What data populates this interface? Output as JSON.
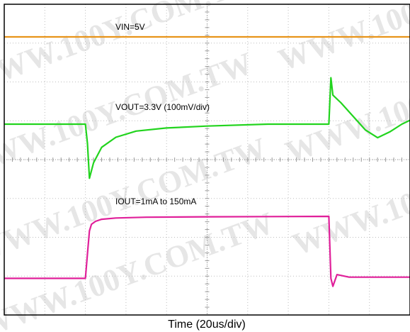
{
  "chart_data": {
    "type": "line",
    "title": "",
    "xlabel": "Time (20us/div)",
    "ylabel": "",
    "xlim": [
      0,
      200
    ],
    "grid": true,
    "grid_divisions": {
      "x": 10,
      "y": 8
    },
    "watermark": "WWW.100Y.COM.TW",
    "series": [
      {
        "name": "VIN=5V",
        "color": "#e8941a",
        "x": [
          0,
          200
        ],
        "y": [
          5.0,
          5.0
        ]
      },
      {
        "name": "VOUT=3.3V (100mV/div)",
        "color": "#22d41e",
        "x": [
          0,
          40,
          41,
          42,
          44,
          48,
          55,
          65,
          80,
          100,
          130,
          160,
          161,
          162,
          166,
          172,
          178,
          184,
          190,
          196,
          200
        ],
        "y": [
          3.3,
          3.3,
          3.25,
          3.16,
          3.2,
          3.24,
          3.266,
          3.282,
          3.29,
          3.295,
          3.3,
          3.3,
          3.42,
          3.375,
          3.355,
          3.32,
          3.285,
          3.265,
          3.28,
          3.3,
          3.31
        ]
      },
      {
        "name": "IOUT=1mA to 150mA",
        "color": "#e0209a",
        "x": [
          0,
          40,
          41,
          42,
          43,
          45,
          48,
          55,
          70,
          100,
          160,
          161,
          162,
          164,
          170,
          200
        ],
        "y": [
          1,
          1,
          60,
          115,
          131,
          138,
          143,
          146,
          148,
          149,
          150,
          1,
          -18,
          10,
          4,
          4
        ]
      }
    ]
  }
}
